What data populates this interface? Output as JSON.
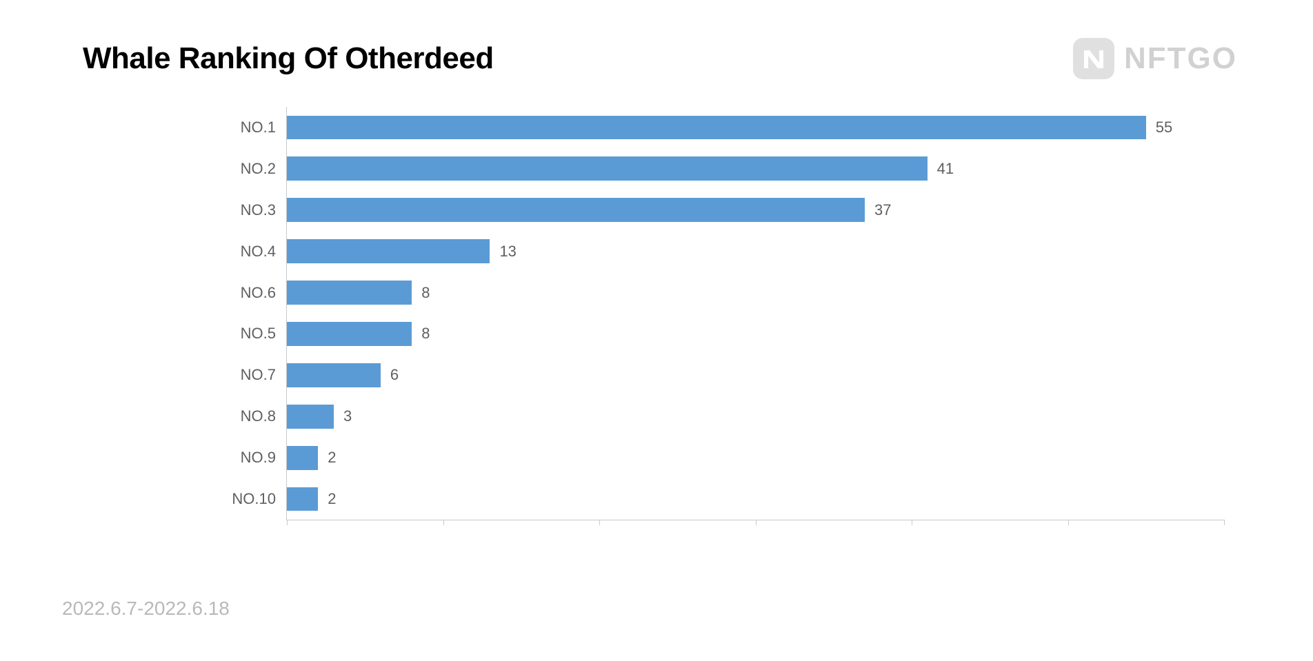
{
  "title": "Whale Ranking Of Otherdeed",
  "logo": {
    "text": "NFTGO"
  },
  "date_range": "2022.6.7-2022.6.18",
  "chart": {
    "type": "bar-horizontal",
    "xlim": [
      0,
      60
    ],
    "xtick_step": 10,
    "bar_color": "#5b9bd5",
    "label_color": "#5f5f5f",
    "axis_color": "#c9c9c9",
    "background_color": "#ffffff",
    "label_fontsize": 22,
    "value_fontsize": 22,
    "title_fontsize": 44,
    "bar_height_ratio": 0.58,
    "categories": [
      "NO.1",
      "NO.2",
      "NO.3",
      "NO.4",
      "NO.6",
      "NO.5",
      "NO.7",
      "NO.8",
      "NO.9",
      "NO.10"
    ],
    "values": [
      55,
      41,
      37,
      13,
      8,
      8,
      6,
      3,
      2,
      2
    ]
  }
}
